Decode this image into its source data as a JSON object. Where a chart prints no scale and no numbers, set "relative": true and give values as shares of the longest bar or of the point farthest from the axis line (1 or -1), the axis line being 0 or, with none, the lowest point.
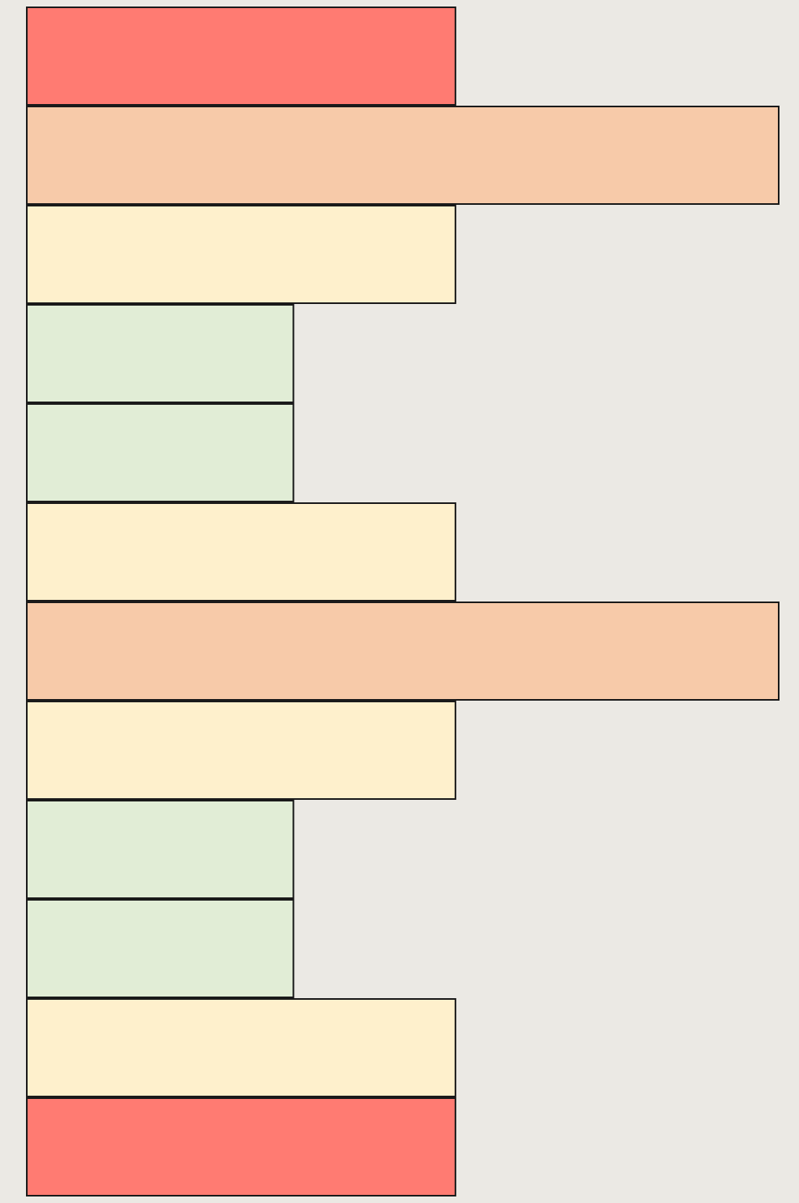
{
  "chart_data": {
    "type": "bar",
    "orientation": "horizontal",
    "relative": true,
    "categories": [
      null,
      null,
      null,
      null,
      null,
      null,
      null,
      null,
      null,
      null,
      null,
      null
    ],
    "values": [
      0.571,
      1,
      0.571,
      0.356,
      0.356,
      0.571,
      1,
      0.571,
      0.356,
      0.356,
      0.571,
      0.571
    ],
    "colors": [
      "#ff7b72",
      "#f7caa9",
      "#fef0cc",
      "#e1edd6",
      "#e1edd6",
      "#fef0cc",
      "#f7caa9",
      "#fef0cc",
      "#e1edd6",
      "#e1edd6",
      "#fef0cc",
      "#ff7b72"
    ]
  }
}
